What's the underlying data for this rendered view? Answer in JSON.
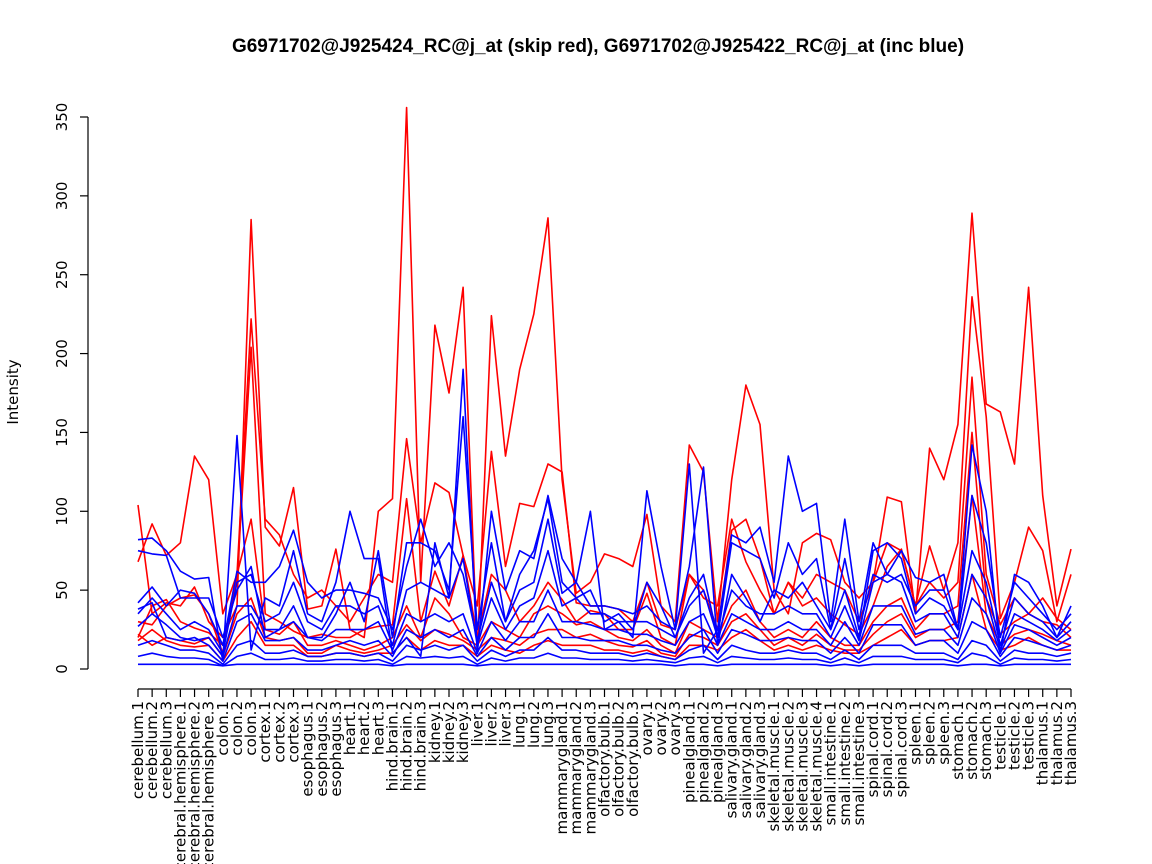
{
  "chart_data": {
    "type": "line",
    "title": "G6971702@J925424_RC@j_at (skip red), G6971702@J925422_RC@j_at (inc blue)",
    "xlabel": "",
    "ylabel": "Intensity",
    "ylim": [
      0,
      350
    ],
    "yticks": [
      0,
      50,
      100,
      150,
      200,
      250,
      300,
      350
    ],
    "grid": false,
    "legend": "none",
    "colors": {
      "skip": "#ff0000",
      "inc": "#0000ff",
      "axis": "#000000"
    },
    "categories": [
      "cerebellum.1",
      "cerebellum.2",
      "cerebellum.3",
      "cerebral.hemisphere.1",
      "cerebral.hemisphere.2",
      "cerebral.hemisphere.3",
      "colon.1",
      "colon.2",
      "colon.3",
      "cortex.1",
      "cortex.2",
      "cortex.3",
      "esophagus.1",
      "esophagus.2",
      "esophagus.3",
      "heart.1",
      "heart.2",
      "heart.3",
      "hind.brain.1",
      "hind.brain.2",
      "hind.brain.3",
      "kidney.1",
      "kidney.2",
      "kidney.3",
      "liver.1",
      "liver.2",
      "liver.3",
      "lung.1",
      "lung.2",
      "lung.3",
      "mammarygland.1",
      "mammarygland.2",
      "mammarygland.3",
      "olfactory.bulb.1",
      "olfactory.bulb.2",
      "olfactory.bulb.3",
      "ovary.1",
      "ovary.2",
      "ovary.3",
      "pinealgland.1",
      "pinealgland.2",
      "pinealgland.3",
      "salivary.gland.1",
      "salivary.gland.2",
      "salivary.gland.3",
      "skeletal.muscle.1",
      "skeletal.muscle.2",
      "skeletal.muscle.3",
      "skeletal.muscle.4",
      "small.intestine.1",
      "small.intestine.2",
      "small.intestine.3",
      "spinal.cord.1",
      "spinal.cord.2",
      "spinal.cord.3",
      "spleen.1",
      "spleen.2",
      "spleen.3",
      "stomach.1",
      "stomach.2",
      "stomach.3",
      "testicle.1",
      "testicle.2",
      "testicle.3",
      "thalamus.1",
      "thalamus.2",
      "thalamus.3"
    ],
    "series": [
      {
        "group": "skip",
        "values": [
          104,
          35,
          42,
          40,
          52,
          30,
          20,
          40,
          285,
          90,
          78,
          115,
          38,
          40,
          76,
          25,
          20,
          100,
          108,
          356,
          55,
          218,
          175,
          242,
          10,
          224,
          135,
          190,
          225,
          286,
          120,
          48,
          55,
          73,
          70,
          65,
          98,
          40,
          30,
          142,
          125,
          30,
          120,
          180,
          155,
          50,
          35,
          80,
          86,
          82,
          55,
          45,
          55,
          109,
          106,
          35,
          140,
          120,
          155,
          289,
          168,
          163,
          130,
          242,
          110,
          40,
          76
        ]
      },
      {
        "group": "skip",
        "values": [
          68,
          92,
          72,
          80,
          135,
          120,
          35,
          60,
          222,
          95,
          85,
          60,
          45,
          50,
          40,
          30,
          45,
          60,
          55,
          146,
          80,
          118,
          112,
          72,
          40,
          138,
          65,
          105,
          103,
          130,
          125,
          42,
          40,
          40,
          38,
          30,
          55,
          28,
          25,
          60,
          45,
          40,
          95,
          68,
          50,
          35,
          55,
          45,
          60,
          55,
          50,
          30,
          55,
          80,
          75,
          40,
          78,
          50,
          80,
          236,
          160,
          32,
          55,
          90,
          75,
          30,
          60
        ]
      },
      {
        "group": "skip",
        "values": [
          20,
          40,
          44,
          30,
          26,
          23,
          15,
          56,
          204,
          35,
          30,
          24,
          20,
          22,
          20,
          20,
          25,
          27,
          28,
          108,
          30,
          62,
          40,
          72,
          20,
          60,
          50,
          30,
          40,
          55,
          44,
          30,
          37,
          35,
          25,
          25,
          48,
          20,
          15,
          60,
          50,
          25,
          88,
          95,
          70,
          35,
          55,
          40,
          45,
          35,
          28,
          22,
          40,
          65,
          76,
          40,
          55,
          45,
          55,
          185,
          60,
          28,
          45,
          35,
          45,
          32,
          25
        ]
      },
      {
        "group": "skip",
        "values": [
          30,
          28,
          40,
          45,
          47,
          35,
          10,
          60,
          95,
          25,
          22,
          30,
          15,
          15,
          18,
          15,
          12,
          15,
          20,
          40,
          20,
          45,
          35,
          20,
          15,
          30,
          25,
          20,
          35,
          40,
          35,
          28,
          30,
          25,
          20,
          18,
          25,
          15,
          10,
          30,
          25,
          20,
          40,
          50,
          30,
          20,
          25,
          20,
          30,
          20,
          15,
          15,
          30,
          40,
          45,
          25,
          35,
          35,
          40,
          150,
          45,
          22,
          30,
          35,
          30,
          28,
          20
        ]
      },
      {
        "group": "skip",
        "values": [
          22,
          15,
          20,
          18,
          16,
          20,
          8,
          35,
          45,
          20,
          18,
          20,
          10,
          10,
          15,
          12,
          10,
          12,
          15,
          28,
          18,
          25,
          22,
          18,
          12,
          20,
          18,
          15,
          22,
          25,
          25,
          20,
          22,
          18,
          15,
          14,
          18,
          10,
          8,
          22,
          20,
          15,
          30,
          35,
          25,
          15,
          20,
          15,
          22,
          15,
          12,
          12,
          22,
          30,
          35,
          20,
          25,
          25,
          30,
          110,
          35,
          15,
          22,
          25,
          22,
          18,
          15
        ]
      },
      {
        "group": "skip",
        "values": [
          18,
          25,
          18,
          15,
          14,
          15,
          5,
          20,
          30,
          15,
          15,
          15,
          8,
          8,
          10,
          10,
          8,
          10,
          10,
          20,
          12,
          18,
          15,
          15,
          8,
          15,
          12,
          10,
          15,
          18,
          15,
          15,
          15,
          12,
          12,
          10,
          12,
          8,
          6,
          15,
          15,
          12,
          20,
          25,
          18,
          12,
          15,
          12,
          15,
          12,
          10,
          10,
          15,
          20,
          25,
          15,
          18,
          18,
          20,
          60,
          25,
          12,
          15,
          20,
          15,
          12,
          12
        ]
      },
      {
        "group": "inc",
        "values": [
          82,
          83,
          75,
          62,
          57,
          58,
          5,
          148,
          12,
          45,
          40,
          75,
          35,
          30,
          55,
          100,
          70,
          70,
          10,
          20,
          8,
          80,
          45,
          190,
          10,
          100,
          50,
          75,
          70,
          110,
          70,
          55,
          100,
          25,
          30,
          20,
          113,
          65,
          25,
          130,
          10,
          25,
          85,
          80,
          90,
          55,
          135,
          100,
          105,
          30,
          95,
          30,
          80,
          60,
          75,
          58,
          55,
          60,
          25,
          142,
          100,
          10,
          60,
          55,
          40,
          20,
          40
        ]
      },
      {
        "group": "inc",
        "values": [
          75,
          73,
          72,
          45,
          45,
          45,
          20,
          50,
          65,
          20,
          25,
          40,
          20,
          20,
          35,
          55,
          30,
          75,
          20,
          80,
          80,
          75,
          50,
          160,
          25,
          80,
          30,
          60,
          75,
          108,
          55,
          45,
          50,
          30,
          35,
          25,
          55,
          40,
          20,
          40,
          50,
          20,
          80,
          75,
          70,
          45,
          80,
          60,
          70,
          25,
          70,
          25,
          60,
          55,
          60,
          40,
          50,
          50,
          25,
          110,
          80,
          20,
          55,
          45,
          35,
          25,
          35
        ]
      },
      {
        "group": "inc",
        "values": [
          42,
          52,
          40,
          50,
          48,
          35,
          15,
          62,
          55,
          55,
          65,
          88,
          55,
          45,
          50,
          50,
          48,
          45,
          25,
          65,
          95,
          65,
          80,
          60,
          18,
          55,
          30,
          50,
          55,
          95,
          48,
          55,
          40,
          40,
          38,
          35,
          40,
          30,
          25,
          65,
          128,
          15,
          60,
          45,
          30,
          50,
          45,
          55,
          40,
          25,
          50,
          20,
          75,
          80,
          70,
          35,
          45,
          40,
          25,
          75,
          55,
          15,
          45,
          35,
          30,
          20,
          30
        ]
      },
      {
        "group": "inc",
        "values": [
          35,
          45,
          35,
          25,
          30,
          25,
          10,
          55,
          60,
          30,
          35,
          55,
          30,
          25,
          40,
          40,
          35,
          40,
          15,
          50,
          55,
          50,
          45,
          70,
          15,
          45,
          25,
          40,
          45,
          75,
          40,
          45,
          35,
          35,
          30,
          30,
          30,
          25,
          20,
          45,
          60,
          20,
          50,
          40,
          35,
          35,
          40,
          35,
          35,
          20,
          40,
          18,
          55,
          60,
          55,
          30,
          35,
          35,
          20,
          60,
          45,
          12,
          35,
          30,
          25,
          18,
          25
        ]
      },
      {
        "group": "inc",
        "values": [
          27,
          35,
          28,
          20,
          18,
          20,
          8,
          40,
          40,
          25,
          25,
          30,
          20,
          18,
          25,
          25,
          25,
          30,
          12,
          35,
          30,
          35,
          30,
          35,
          10,
          30,
          18,
          30,
          30,
          50,
          30,
          30,
          28,
          25,
          25,
          22,
          22,
          18,
          15,
          30,
          35,
          15,
          35,
          30,
          25,
          25,
          30,
          25,
          25,
          15,
          30,
          15,
          40,
          40,
          40,
          22,
          25,
          25,
          15,
          45,
          35,
          10,
          28,
          25,
          20,
          15,
          20
        ]
      },
      {
        "group": "inc",
        "values": [
          38,
          42,
          20,
          18,
          20,
          15,
          5,
          30,
          35,
          18,
          18,
          20,
          12,
          12,
          15,
          18,
          15,
          18,
          8,
          25,
          20,
          25,
          20,
          25,
          8,
          20,
          12,
          20,
          20,
          35,
          20,
          20,
          18,
          18,
          18,
          15,
          15,
          12,
          10,
          20,
          25,
          10,
          25,
          22,
          18,
          18,
          20,
          18,
          18,
          10,
          20,
          10,
          28,
          28,
          28,
          15,
          18,
          18,
          10,
          30,
          25,
          8,
          20,
          18,
          15,
          12,
          15
        ]
      },
      {
        "group": "inc",
        "values": [
          15,
          18,
          15,
          12,
          12,
          10,
          3,
          15,
          18,
          10,
          10,
          12,
          8,
          8,
          10,
          10,
          8,
          10,
          5,
          15,
          12,
          15,
          12,
          15,
          5,
          12,
          8,
          12,
          12,
          20,
          12,
          12,
          10,
          10,
          10,
          8,
          10,
          8,
          6,
          12,
          15,
          6,
          15,
          12,
          10,
          10,
          12,
          10,
          10,
          6,
          12,
          6,
          15,
          15,
          15,
          10,
          10,
          10,
          6,
          18,
          15,
          5,
          12,
          10,
          10,
          8,
          10
        ]
      },
      {
        "group": "inc",
        "values": [
          8,
          10,
          8,
          7,
          7,
          6,
          2,
          8,
          10,
          6,
          6,
          7,
          5,
          5,
          6,
          6,
          5,
          6,
          3,
          8,
          7,
          8,
          7,
          8,
          3,
          7,
          5,
          7,
          7,
          10,
          7,
          7,
          6,
          6,
          6,
          5,
          6,
          5,
          4,
          7,
          8,
          4,
          8,
          7,
          6,
          6,
          7,
          6,
          6,
          4,
          7,
          4,
          8,
          8,
          8,
          6,
          6,
          6,
          4,
          10,
          8,
          3,
          7,
          6,
          6,
          5,
          6
        ]
      },
      {
        "group": "inc",
        "values": [
          3,
          3,
          3,
          3,
          3,
          3,
          2,
          3,
          3,
          3,
          3,
          3,
          3,
          3,
          3,
          3,
          3,
          3,
          2,
          3,
          3,
          3,
          3,
          3,
          2,
          3,
          3,
          3,
          3,
          3,
          3,
          3,
          3,
          3,
          3,
          3,
          3,
          3,
          2,
          3,
          3,
          2,
          3,
          3,
          3,
          3,
          3,
          3,
          3,
          2,
          3,
          2,
          3,
          3,
          3,
          3,
          3,
          3,
          2,
          3,
          3,
          2,
          3,
          3,
          3,
          3,
          3
        ]
      }
    ]
  }
}
